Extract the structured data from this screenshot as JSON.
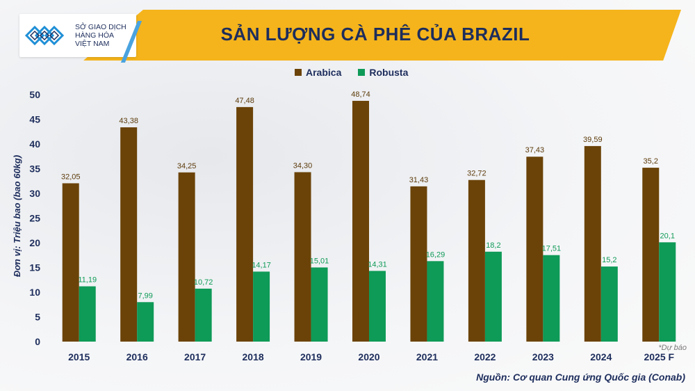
{
  "header": {
    "title": "SẢN LƯỢNG CÀ PHÊ CỦA BRAZIL",
    "logo_lines": [
      "SỞ GIAO DỊCH",
      "HÀNG HÓA",
      "VIỆT NAM"
    ]
  },
  "chart_data": {
    "type": "bar",
    "title": "SẢN LƯỢNG CÀ PHÊ CỦA BRAZIL",
    "ylabel": "Đơn vị: Triệu bao (bao 60kg)",
    "xlabel": "",
    "categories": [
      "2015",
      "2016",
      "2017",
      "2018",
      "2019",
      "2020",
      "2021",
      "2022",
      "2023",
      "2024",
      "2025 F"
    ],
    "series": [
      {
        "name": "Arabica",
        "color": "#6b4308",
        "values": [
          32.05,
          43.38,
          34.25,
          47.48,
          34.3,
          48.74,
          31.43,
          32.72,
          37.43,
          39.59,
          35.2
        ],
        "labels": [
          "32,05",
          "43,38",
          "34,25",
          "47,48",
          "34,30",
          "48,74",
          "31,43",
          "32,72",
          "37,43",
          "39,59",
          "35,2"
        ],
        "label_color": "#5c3a0a"
      },
      {
        "name": "Robusta",
        "color": "#0e9a57",
        "values": [
          11.19,
          7.99,
          10.72,
          14.17,
          15.01,
          14.31,
          16.29,
          18.2,
          17.51,
          15.2,
          20.1
        ],
        "labels": [
          "11,19",
          "7,99",
          "10,72",
          "14,17",
          "15,01",
          "14,31",
          "16,29",
          "18,2",
          "17,51",
          "15,2",
          "20,1"
        ],
        "label_color": "#0e9a57"
      }
    ],
    "ylim": [
      0,
      50
    ],
    "yticks": [
      0,
      5,
      10,
      15,
      20,
      25,
      30,
      35,
      40,
      45,
      50
    ],
    "grid": false,
    "legend": "top-center",
    "note": "*Dự báo",
    "source": "Nguồn: Cơ quan Cung ứng Quốc gia (Conab)"
  },
  "colors": {
    "banner": "#f5b41b",
    "title_text": "#1d2d5c",
    "arabica": "#6b4308",
    "robusta": "#0e9a57"
  }
}
